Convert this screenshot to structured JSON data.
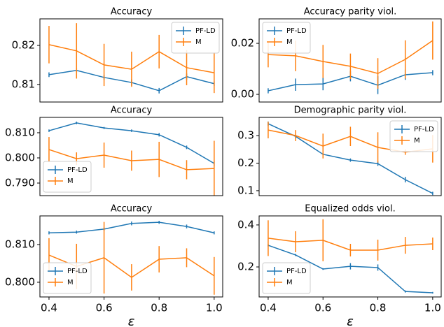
{
  "chart_data": [
    {
      "type": "errorbar-line",
      "title": "Accuracy",
      "legend_loc": "upper right",
      "x": [
        0.4,
        0.5,
        0.6,
        0.7,
        0.8,
        0.9,
        1.0
      ],
      "xlim": [
        0.367,
        1.031
      ],
      "ylim": [
        0.8055,
        0.8268
      ],
      "yticks": [
        0.81,
        0.82
      ],
      "series": [
        {
          "name": "PF-LD",
          "color": "#1f77b4",
          "values": [
            0.8125,
            0.8136,
            0.8118,
            0.8105,
            0.8084,
            0.812,
            0.8102
          ],
          "errors": [
            0.0006,
            0.0006,
            0.0006,
            0.0008,
            0.0007,
            0.0008,
            0.0006
          ]
        },
        {
          "name": "M",
          "color": "#ff7f0e",
          "values": [
            0.8202,
            0.8186,
            0.815,
            0.8139,
            0.8184,
            0.8143,
            0.813
          ],
          "errors": [
            0.0048,
            0.0071,
            0.0054,
            0.0045,
            0.0043,
            0.0045,
            0.0052
          ]
        }
      ]
    },
    {
      "type": "errorbar-line",
      "title": "Accuracy parity viol.",
      "legend_loc": "upper left",
      "x": [
        0.4,
        0.5,
        0.6,
        0.7,
        0.8,
        0.9,
        1.0
      ],
      "xlim": [
        0.367,
        1.031
      ],
      "ylim": [
        -0.003,
        0.0296
      ],
      "yticks": [
        {
          "value": 0,
          "label": "0.00"
        },
        0.02
      ],
      "series": [
        {
          "name": "PF-LD",
          "color": "#1f77b4",
          "values": [
            0.0014,
            0.0038,
            0.0041,
            0.0071,
            0.0036,
            0.0077,
            0.0085
          ],
          "errors": [
            0.001,
            0.0024,
            0.0025,
            0.002,
            0.0035,
            0.002,
            0.001
          ]
        },
        {
          "name": "M",
          "color": "#ff7f0e",
          "values": [
            0.0156,
            0.0151,
            0.0129,
            0.011,
            0.0082,
            0.0137,
            0.0211
          ],
          "errors": [
            0.005,
            0.006,
            0.0065,
            0.005,
            0.006,
            0.0075,
            0.0075
          ]
        }
      ]
    },
    {
      "type": "errorbar-line",
      "title": "Accuracy",
      "legend_loc": "lower left",
      "x": [
        0.4,
        0.5,
        0.6,
        0.7,
        0.8,
        0.9,
        1.0
      ],
      "xlim": [
        0.367,
        1.031
      ],
      "ylim": [
        0.785,
        0.8161
      ],
      "yticks": [
        {
          "value": 0.79,
          "label": "0.790"
        },
        {
          "value": 0.8,
          "label": "0.800"
        },
        {
          "value": 0.81,
          "label": "0.810"
        }
      ],
      "series": [
        {
          "name": "PF-LD",
          "color": "#1f77b4",
          "values": [
            0.8108,
            0.8139,
            0.8119,
            0.8108,
            0.8092,
            0.8042,
            0.7978
          ],
          "errors": [
            0.0005,
            0.0005,
            0.0004,
            0.0005,
            0.0007,
            0.0007,
            0.001
          ]
        },
        {
          "name": "M",
          "color": "#ff7f0e",
          "values": [
            0.8033,
            0.7997,
            0.8011,
            0.7989,
            0.7994,
            0.7953,
            0.7958
          ],
          "errors": [
            0.005,
            0.0025,
            0.005,
            0.004,
            0.007,
            0.0038,
            0.011
          ]
        }
      ]
    },
    {
      "type": "errorbar-line",
      "title": "Demographic parity viol.",
      "legend_loc": "upper right",
      "x": [
        0.4,
        0.5,
        0.6,
        0.7,
        0.8,
        0.9,
        1.0
      ],
      "xlim": [
        0.367,
        1.031
      ],
      "ylim": [
        0.082,
        0.366
      ],
      "yticks": [
        0.1,
        0.2,
        0.3
      ],
      "series": [
        {
          "name": "PF-LD",
          "color": "#1f77b4",
          "values": [
            0.343,
            0.297,
            0.232,
            0.211,
            0.198,
            0.14,
            0.09
          ],
          "errors": [
            0.008,
            0.006,
            0.006,
            0.006,
            0.008,
            0.01,
            0.006
          ]
        },
        {
          "name": "M",
          "color": "#ff7f0e",
          "values": [
            0.32,
            0.3,
            0.262,
            0.297,
            0.257,
            0.24,
            0.252
          ],
          "errors": [
            0.03,
            0.02,
            0.045,
            0.035,
            0.055,
            0.01,
            0.05
          ]
        }
      ]
    },
    {
      "type": "errorbar-line",
      "title": "Accuracy",
      "legend_loc": "lower left",
      "xlabel": "ε",
      "x": [
        0.4,
        0.5,
        0.6,
        0.7,
        0.8,
        0.9,
        1.0
      ],
      "xlim": [
        0.367,
        1.031
      ],
      "xticks": [
        0.4,
        0.6,
        0.8,
        {
          "value": 1,
          "label": "1.0"
        }
      ],
      "ylim": [
        0.7961,
        0.8176
      ],
      "yticks": [
        {
          "value": 0.8,
          "label": "0.800"
        },
        {
          "value": 0.81,
          "label": "0.810"
        }
      ],
      "series": [
        {
          "name": "PF-LD",
          "color": "#1f77b4",
          "values": [
            0.8131,
            0.8133,
            0.8141,
            0.8156,
            0.8159,
            0.8148,
            0.8131
          ],
          "errors": [
            0.0004,
            0.0004,
            0.0004,
            0.0005,
            0.0004,
            0.0005,
            0.0004
          ]
        },
        {
          "name": "M",
          "color": "#ff7f0e",
          "values": [
            0.8072,
            0.8042,
            0.8065,
            0.8013,
            0.8061,
            0.8065,
            0.8017
          ],
          "errors": [
            0.0045,
            0.006,
            0.0095,
            0.0035,
            0.0035,
            0.0025,
            0.005
          ]
        }
      ]
    },
    {
      "type": "errorbar-line",
      "title": "Equalized odds viol.",
      "legend_loc": "lower left",
      "xlabel": "ε",
      "x": [
        0.4,
        0.5,
        0.6,
        0.7,
        0.8,
        0.9,
        1.0
      ],
      "xlim": [
        0.367,
        1.031
      ],
      "xticks": [
        0.4,
        0.6,
        0.8,
        {
          "value": 1,
          "label": "1.0"
        }
      ],
      "ylim": [
        0.057,
        0.443
      ],
      "yticks": [
        0.2,
        0.4
      ],
      "series": [
        {
          "name": "PF-LD",
          "color": "#1f77b4",
          "values": [
            0.303,
            0.257,
            0.19,
            0.203,
            0.197,
            0.083,
            0.077
          ],
          "errors": [
            0.005,
            0.005,
            0.004,
            0.015,
            0.015,
            0.005,
            0.004
          ]
        },
        {
          "name": "M",
          "color": "#ff7f0e",
          "values": [
            0.337,
            0.32,
            0.327,
            0.28,
            0.28,
            0.303,
            0.31
          ],
          "errors": [
            0.085,
            0.05,
            0.1,
            0.03,
            0.05,
            0.04,
            0.03
          ]
        }
      ]
    }
  ]
}
